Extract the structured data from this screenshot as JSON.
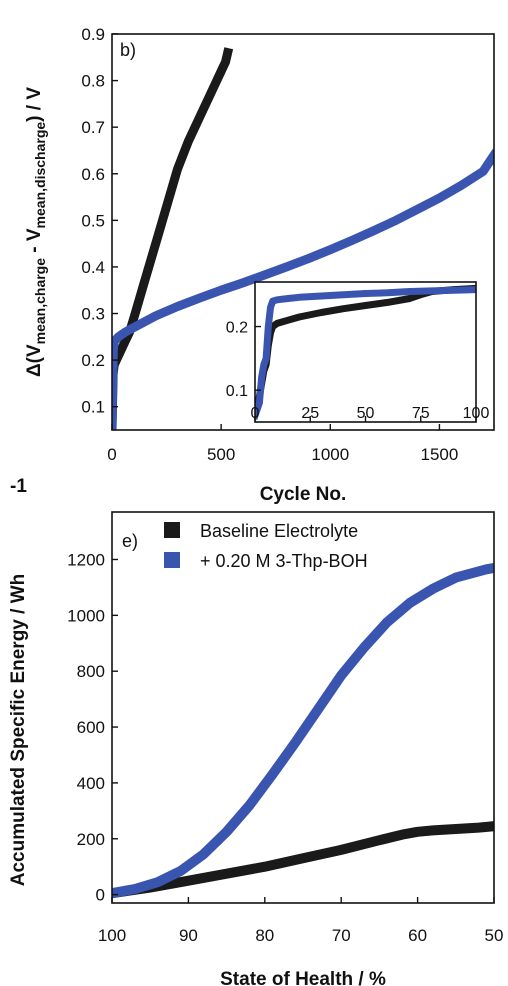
{
  "colors": {
    "baseline": "#1a1a1a",
    "additive": "#3a55b0"
  },
  "chart_data": [
    {
      "type": "line",
      "panel_label": "b)",
      "xlabel": "Cycle No.",
      "ylabel": "Δ(V",
      "ylabel_sub1": "mean,charge",
      "ylabel_mid": " - V",
      "ylabel_sub2": "mean,discharge",
      "ylabel_end": ") / V",
      "xlim": [
        0,
        1750
      ],
      "ylim": [
        0.05,
        0.9
      ],
      "xticks": [
        0,
        500,
        1000,
        1500
      ],
      "yticks": [
        0.1,
        0.2,
        0.3,
        0.4,
        0.5,
        0.6,
        0.7,
        0.8,
        0.9
      ],
      "series": [
        {
          "color_key": "baseline",
          "x": [
            0,
            5,
            10,
            20,
            40,
            60,
            80,
            100,
            150,
            200,
            250,
            300,
            350,
            400,
            450,
            500,
            520,
            530
          ],
          "y": [
            0.05,
            0.17,
            0.19,
            0.2,
            0.22,
            0.24,
            0.26,
            0.29,
            0.37,
            0.45,
            0.53,
            0.61,
            0.67,
            0.72,
            0.77,
            0.82,
            0.84,
            0.86
          ]
        },
        {
          "color_key": "additive",
          "x": [
            0,
            3,
            6,
            10,
            30,
            60,
            100,
            200,
            300,
            400,
            500,
            600,
            700,
            800,
            900,
            1000,
            1100,
            1200,
            1300,
            1400,
            1500,
            1600,
            1700,
            1750
          ],
          "y": [
            0.05,
            0.15,
            0.22,
            0.24,
            0.25,
            0.26,
            0.27,
            0.295,
            0.315,
            0.333,
            0.35,
            0.366,
            0.383,
            0.4,
            0.418,
            0.437,
            0.457,
            0.478,
            0.5,
            0.524,
            0.548,
            0.575,
            0.605,
            0.64
          ]
        }
      ],
      "inset": {
        "xlim": [
          0,
          100
        ],
        "ylim": [
          0.05,
          0.27
        ],
        "xticks": [
          0,
          25,
          50,
          75,
          100
        ],
        "yticks": [
          0.1,
          0.2
        ],
        "series": [
          {
            "color_key": "baseline",
            "x": [
              0,
              2,
              3,
              4,
              5,
              6,
              7,
              8,
              10,
              15,
              20,
              30,
              40,
              50,
              60,
              70,
              75,
              80,
              90,
              100
            ],
            "y": [
              0.07,
              0.09,
              0.11,
              0.13,
              0.14,
              0.17,
              0.19,
              0.2,
              0.205,
              0.21,
              0.215,
              0.222,
              0.228,
              0.233,
              0.238,
              0.244,
              0.25,
              0.255,
              0.258,
              0.26
            ]
          },
          {
            "color_key": "additive",
            "x": [
              0,
              2,
              3,
              4,
              5,
              6,
              7,
              8,
              10,
              15,
              20,
              30,
              40,
              50,
              60,
              70,
              80,
              90,
              100
            ],
            "y": [
              0.06,
              0.08,
              0.12,
              0.14,
              0.15,
              0.2,
              0.23,
              0.24,
              0.242,
              0.244,
              0.246,
              0.248,
              0.25,
              0.252,
              0.253,
              0.255,
              0.256,
              0.257,
              0.258
            ]
          }
        ]
      }
    },
    {
      "type": "line",
      "panel_label": "e)",
      "xlabel": "State of Health / %",
      "ylabel": "Accumulated Specific Energy / Wh",
      "ylabel_cut": "-1",
      "xlim": [
        100,
        50
      ],
      "ylim": [
        -30,
        1370
      ],
      "xticks": [
        100,
        90,
        80,
        70,
        60,
        50
      ],
      "yticks": [
        0,
        200,
        400,
        600,
        800,
        1000,
        1200
      ],
      "legend": [
        {
          "label": "Baseline Electrolyte",
          "color_key": "baseline"
        },
        {
          "label": "+ 0.20 M 3-Thp-BOH",
          "color_key": "additive"
        }
      ],
      "series": [
        {
          "color_key": "baseline",
          "x": [
            100,
            95,
            90,
            85,
            80,
            75,
            70,
            65,
            62,
            60,
            58,
            55,
            52,
            50
          ],
          "y": [
            5,
            25,
            50,
            75,
            100,
            130,
            160,
            195,
            215,
            225,
            230,
            235,
            240,
            245
          ]
        },
        {
          "color_key": "additive",
          "x": [
            100,
            97,
            94,
            91,
            88,
            85,
            82,
            79,
            76,
            73,
            70,
            67,
            64,
            61,
            58,
            55,
            53,
            51,
            50
          ],
          "y": [
            5,
            20,
            45,
            85,
            145,
            225,
            320,
            430,
            545,
            665,
            785,
            885,
            975,
            1045,
            1095,
            1135,
            1150,
            1165,
            1170
          ]
        }
      ]
    }
  ]
}
